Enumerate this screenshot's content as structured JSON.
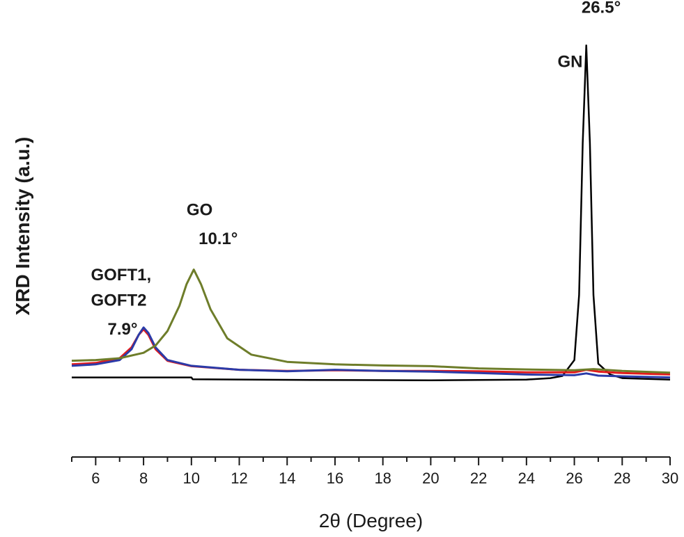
{
  "chart_data": {
    "type": "line",
    "title": "",
    "xlabel": "2θ (Degree)",
    "ylabel": "XRD Intensity (a.u.)",
    "xlim": [
      5,
      30
    ],
    "ylim": [
      0,
      1
    ],
    "y_ticks_shown": false,
    "grid": false,
    "legend": "none",
    "x_tick_labels": [
      "6",
      "8",
      "10",
      "12",
      "14",
      "16",
      "18",
      "20",
      "22",
      "24",
      "26",
      "28",
      "30"
    ],
    "series": [
      {
        "color": "#000000",
        "x": [
          5,
          10,
          10.05,
          15,
          20,
          24,
          25,
          25.5,
          26.0,
          26.2,
          26.35,
          26.5,
          26.65,
          26.8,
          27.0,
          27.5,
          28,
          30
        ],
        "y": [
          0.072,
          0.072,
          0.067,
          0.065,
          0.064,
          0.066,
          0.07,
          0.076,
          0.12,
          0.3,
          0.72,
          0.99,
          0.72,
          0.3,
          0.11,
          0.08,
          0.07,
          0.066
        ]
      },
      {
        "color": "#e31a1c",
        "x": [
          5,
          6,
          7,
          7.5,
          7.8,
          8.0,
          8.2,
          8.5,
          9,
          10,
          12,
          14,
          16,
          18,
          20,
          22,
          24,
          26,
          26.5,
          27,
          28,
          30
        ],
        "y": [
          0.108,
          0.112,
          0.125,
          0.155,
          0.19,
          0.205,
          0.19,
          0.15,
          0.118,
          0.103,
          0.093,
          0.09,
          0.092,
          0.09,
          0.09,
          0.089,
          0.086,
          0.086,
          0.093,
          0.088,
          0.084,
          0.08
        ]
      },
      {
        "color": "#2b3ba8",
        "x": [
          5,
          6,
          7,
          7.5,
          7.8,
          8.0,
          8.2,
          8.5,
          9,
          10,
          12,
          14,
          16,
          18,
          20,
          22,
          24,
          26,
          26.5,
          27,
          28,
          30
        ],
        "y": [
          0.104,
          0.108,
          0.12,
          0.15,
          0.19,
          0.21,
          0.195,
          0.155,
          0.12,
          0.104,
          0.093,
          0.089,
          0.093,
          0.09,
          0.088,
          0.084,
          0.08,
          0.078,
          0.083,
          0.077,
          0.075,
          0.072
        ]
      },
      {
        "color": "#6e7d2a",
        "x": [
          5,
          6,
          7,
          8,
          8.5,
          9,
          9.5,
          9.8,
          10.1,
          10.4,
          10.8,
          11.5,
          12.5,
          14,
          16,
          18,
          20,
          22,
          24,
          26,
          26.8,
          28,
          30
        ],
        "y": [
          0.118,
          0.12,
          0.125,
          0.14,
          0.16,
          0.2,
          0.27,
          0.33,
          0.37,
          0.33,
          0.26,
          0.18,
          0.135,
          0.115,
          0.108,
          0.105,
          0.103,
          0.097,
          0.094,
          0.092,
          0.095,
          0.09,
          0.085
        ]
      }
    ],
    "annotations": [
      {
        "text": "GOFT1,",
        "x": 5.8,
        "y": 0.34
      },
      {
        "text": "GOFT2",
        "x": 5.8,
        "y": 0.27
      },
      {
        "text": "7.9°",
        "x": 6.5,
        "y": 0.19
      },
      {
        "text": "GO",
        "x": 9.8,
        "y": 0.52
      },
      {
        "text": "10.1°",
        "x": 10.3,
        "y": 0.44
      },
      {
        "text": "26.5°",
        "x": 26.3,
        "y": 1.08
      },
      {
        "text": "GN",
        "x": 25.3,
        "y": 0.93
      }
    ]
  }
}
